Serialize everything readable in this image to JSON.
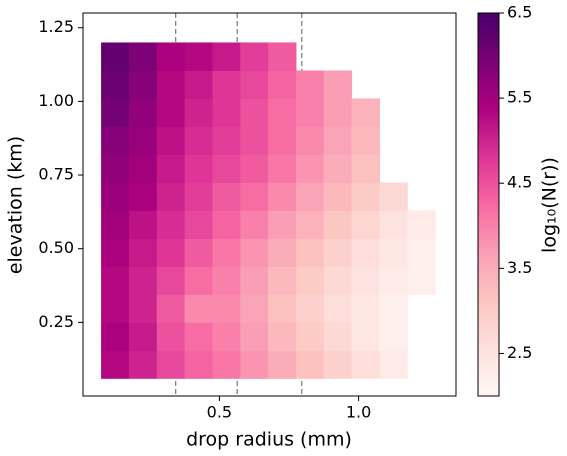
{
  "chart_data": {
    "type": "heatmap",
    "xlabel": "drop radius (mm)",
    "ylabel": "elevation (km)",
    "colorbar_label": "log₁₀(N(r))",
    "xlim": [
      0.01,
      1.35
    ],
    "ylim": [
      0.0,
      1.3
    ],
    "xticks": [
      0.5,
      {
        "value": 1.0,
        "label": "1.0"
      }
    ],
    "yticks": [
      0.25,
      {
        "value": 0.5,
        "label": "0.50"
      },
      0.75,
      {
        "value": 1.0,
        "label": "1.00"
      },
      1.25
    ],
    "clim": [
      2.0,
      6.5
    ],
    "cticks": [
      2.5,
      3.5,
      4.5,
      5.5,
      6.5
    ],
    "colormap": [
      "#fff7f3",
      "#fde0dd",
      "#fcc5c0",
      "#fa9fb5",
      "#f768a1",
      "#dd3497",
      "#ae017e",
      "#7a0177",
      "#49006a"
    ],
    "vlines": [
      0.343,
      0.564,
      0.796
    ],
    "vline_color": "#777777",
    "xbins": [
      0.075,
      0.175,
      0.275,
      0.375,
      0.475,
      0.575,
      0.675,
      0.775,
      0.875,
      0.975,
      1.075,
      1.175,
      1.275
    ],
    "ybins": [
      0.06,
      0.155,
      0.25,
      0.345,
      0.44,
      0.535,
      0.63,
      0.725,
      0.82,
      0.915,
      1.01,
      1.105,
      1.2
    ],
    "values": [
      [
        5.3,
        5.0,
        4.6,
        4.3,
        4.1,
        3.8,
        3.5,
        3.2,
        2.9,
        2.6,
        2.3,
        null
      ],
      [
        5.4,
        5.1,
        4.5,
        4.2,
        4.0,
        3.7,
        3.3,
        3.0,
        2.7,
        2.4,
        2.2,
        null
      ],
      [
        5.3,
        5.0,
        4.4,
        3.9,
        3.9,
        3.6,
        3.2,
        2.9,
        2.6,
        2.4,
        2.2,
        null
      ],
      [
        5.3,
        5.0,
        4.6,
        4.2,
        4.0,
        3.7,
        3.3,
        3.0,
        2.7,
        2.5,
        2.3,
        2.2
      ],
      [
        5.4,
        5.1,
        4.8,
        4.4,
        4.1,
        3.8,
        3.5,
        3.2,
        2.9,
        2.6,
        2.4,
        2.2
      ],
      [
        5.5,
        5.2,
        4.9,
        4.6,
        4.3,
        4.0,
        3.7,
        3.4,
        3.1,
        2.8,
        2.5,
        2.3
      ],
      [
        5.6,
        5.4,
        5.0,
        4.7,
        4.4,
        4.2,
        3.9,
        3.6,
        3.3,
        3.0,
        2.7,
        null
      ],
      [
        5.7,
        5.5,
        5.1,
        4.8,
        4.6,
        4.4,
        4.1,
        3.8,
        3.5,
        3.2,
        null,
        null
      ],
      [
        5.8,
        5.6,
        5.2,
        4.9,
        4.7,
        4.5,
        4.2,
        3.9,
        3.6,
        3.3,
        null,
        null
      ],
      [
        6.0,
        5.7,
        5.3,
        5.0,
        4.8,
        4.5,
        4.2,
        4.0,
        3.7,
        3.4,
        null,
        null
      ],
      [
        6.1,
        5.8,
        5.3,
        5.1,
        4.8,
        4.6,
        4.3,
        4.0,
        3.7,
        null,
        null,
        null
      ],
      [
        6.2,
        5.9,
        5.4,
        5.3,
        5.1,
        4.7,
        4.4,
        null,
        null,
        null,
        null,
        null
      ]
    ]
  }
}
